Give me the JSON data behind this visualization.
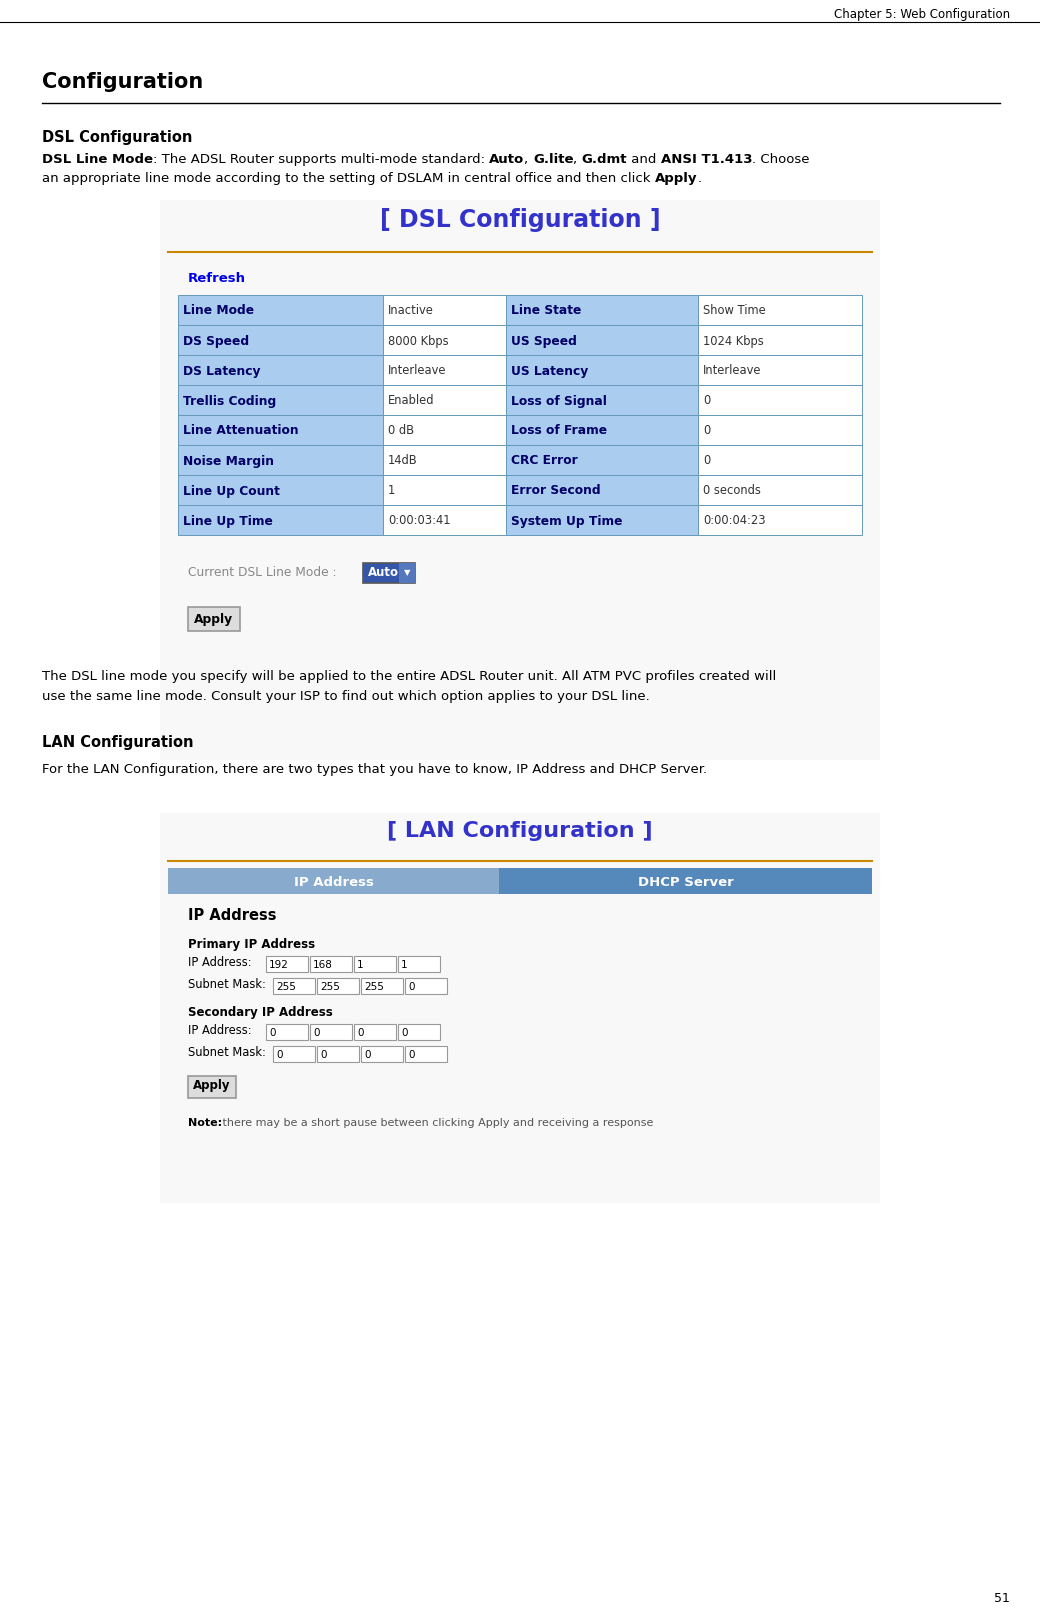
{
  "page_header": "Chapter 5: Web Configuration",
  "page_number": "51",
  "section_title": "Configuration",
  "subsection1_title": "DSL Configuration",
  "dsl_box_title": "[ DSL Configuration ]",
  "dsl_box_title_color": "#3333cc",
  "dsl_orange_line_color": "#cc8800",
  "refresh_text": "Refresh",
  "refresh_color": "#0000ee",
  "table_header_bg": "#aaccee",
  "table_header_text_color": "#000066",
  "table_value_bg": "#ffffff",
  "table_border_color": "#6699bb",
  "table_rows": [
    [
      "Line Mode",
      "Inactive",
      "Line State",
      "Show Time"
    ],
    [
      "DS Speed",
      "8000 Kbps",
      "US Speed",
      "1024 Kbps"
    ],
    [
      "DS Latency",
      "Interleave",
      "US Latency",
      "Interleave"
    ],
    [
      "Trellis Coding",
      "Enabled",
      "Loss of Signal",
      "0"
    ],
    [
      "Line Attenuation",
      "0 dB",
      "Loss of Frame",
      "0"
    ],
    [
      "Noise Margin",
      "14dB",
      "CRC Error",
      "0"
    ],
    [
      "Line Up Count",
      "1",
      "Error Second",
      "0 seconds"
    ],
    [
      "Line Up Time",
      "0:00:03:41",
      "System Up Time",
      "0:00:04:23"
    ]
  ],
  "current_mode_label": "Current DSL Line Mode :",
  "current_mode_value": "Auto",
  "apply_button": "Apply",
  "footer_line1": "The DSL line mode you specify will be applied to the entire ADSL Router unit. All ATM PVC profiles created will",
  "footer_line2": "use the same line mode. Consult your ISP to find out which option applies to your DSL line.",
  "subsection2_title": "LAN Configuration",
  "subsection2_intro": "For the LAN Configuration, there are two types that you have to know, IP Address and DHCP Server.",
  "lan_box_title": "[ LAN Configuration ]",
  "lan_box_title_color": "#3333cc",
  "lan_orange_line_color": "#cc8800",
  "lan_tab1": "IP Address",
  "lan_tab2": "DHCP Server",
  "lan_tab_bg": "#88aacc",
  "lan_tab_text": "#ffffff",
  "lan_tab2_bg": "#5588bb",
  "lan_section_title": "IP Address",
  "lan_primary_label": "Primary IP Address",
  "lan_ip_label": "IP Address:",
  "lan_ip_values": [
    "192",
    "168",
    "1",
    "1"
  ],
  "lan_subnet_label": "Subnet Mask:",
  "lan_subnet_values": [
    "255",
    "255",
    "255",
    "0"
  ],
  "lan_secondary_label": "Secondary IP Address",
  "lan_ip2_values": [
    "0",
    "0",
    "0",
    "0"
  ],
  "lan_subnet2_values": [
    "0",
    "0",
    "0",
    "0"
  ],
  "lan_note_bold": "Note:",
  "lan_note_rest": " there may be a short pause between clicking Apply and receiving a response",
  "bg_color": "#ffffff"
}
